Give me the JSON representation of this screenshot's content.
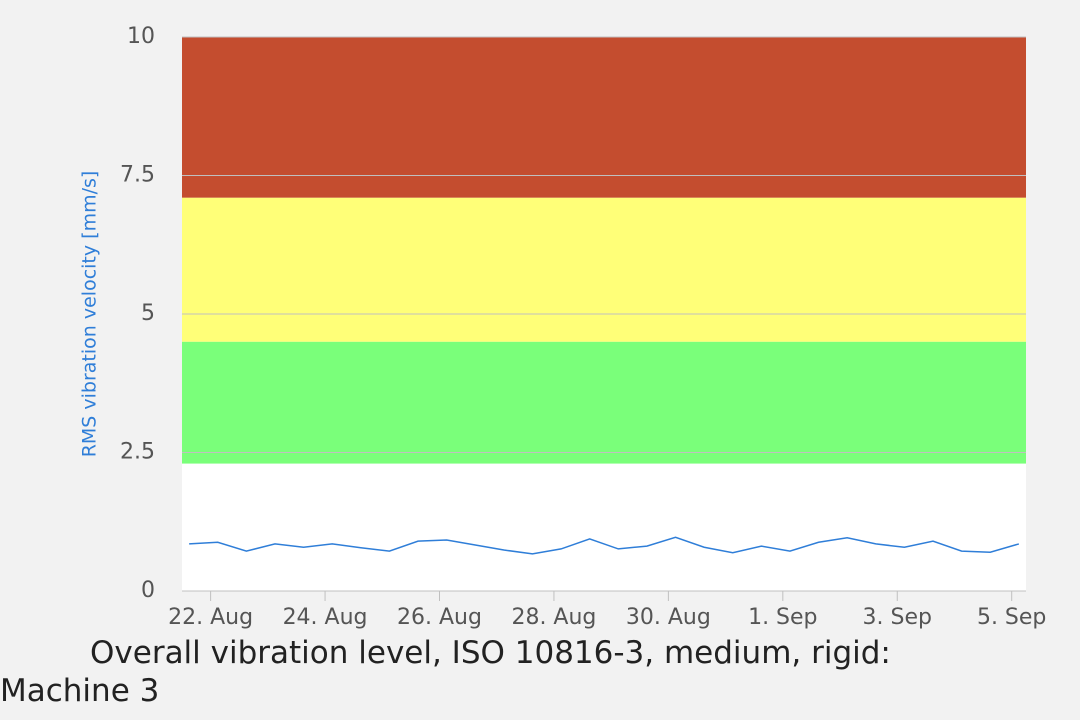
{
  "chart_data": {
    "type": "line",
    "title": "Overall vibration level, ISO 10816-3, medium, rigid: Machine 3",
    "y_label": "RMS vibration velocity [mm/s]",
    "x": [
      "08-21 15:00",
      "08-22 03:00",
      "08-22 15:00",
      "08-23 03:00",
      "08-23 15:00",
      "08-24 03:00",
      "08-24 15:00",
      "08-25 03:00",
      "08-25 15:00",
      "08-26 03:00",
      "08-26 15:00",
      "08-27 03:00",
      "08-27 15:00",
      "08-28 03:00",
      "08-28 15:00",
      "08-29 03:00",
      "08-29 15:00",
      "08-30 03:00",
      "08-30 15:00",
      "08-31 03:00",
      "08-31 15:00",
      "09-01 03:00",
      "09-01 15:00",
      "09-02 03:00",
      "09-02 15:00",
      "09-03 03:00",
      "09-03 15:00",
      "09-04 03:00",
      "09-04 15:00",
      "09-05 03:00"
    ],
    "series": [
      {
        "color": "#2f7ed8",
        "values": [
          0.85,
          0.88,
          0.72,
          0.85,
          0.79,
          0.85,
          0.78,
          0.72,
          0.9,
          0.92,
          0.83,
          0.74,
          0.67,
          0.76,
          0.94,
          0.76,
          0.81,
          0.97,
          0.79,
          0.69,
          0.81,
          0.72,
          0.88,
          0.96,
          0.85,
          0.79,
          0.9,
          0.72,
          0.7,
          0.85
        ]
      }
    ],
    "bands": [
      {
        "from": 2.3,
        "to": 4.5,
        "color": "#7aff7a"
      },
      {
        "from": 4.5,
        "to": 7.1,
        "color": "#ffff78"
      },
      {
        "from": 7.1,
        "to": 10,
        "color": "#c44d2f"
      }
    ],
    "xlim": [
      "08-21 12:00",
      "09-05 06:00"
    ],
    "xticks": [
      {
        "value": "08-22",
        "label": "22. Aug"
      },
      {
        "value": "08-24",
        "label": "24. Aug"
      },
      {
        "value": "08-26",
        "label": "26. Aug"
      },
      {
        "value": "08-28",
        "label": "28. Aug"
      },
      {
        "value": "08-30",
        "label": "30. Aug"
      },
      {
        "value": "09-01",
        "label": "1. Sep"
      },
      {
        "value": "09-03",
        "label": "3. Sep"
      },
      {
        "value": "09-05",
        "label": "5. Sep"
      }
    ],
    "ylim": [
      0,
      10
    ],
    "yticks": [
      0,
      2.5,
      5,
      7.5,
      10
    ],
    "grid": true
  }
}
